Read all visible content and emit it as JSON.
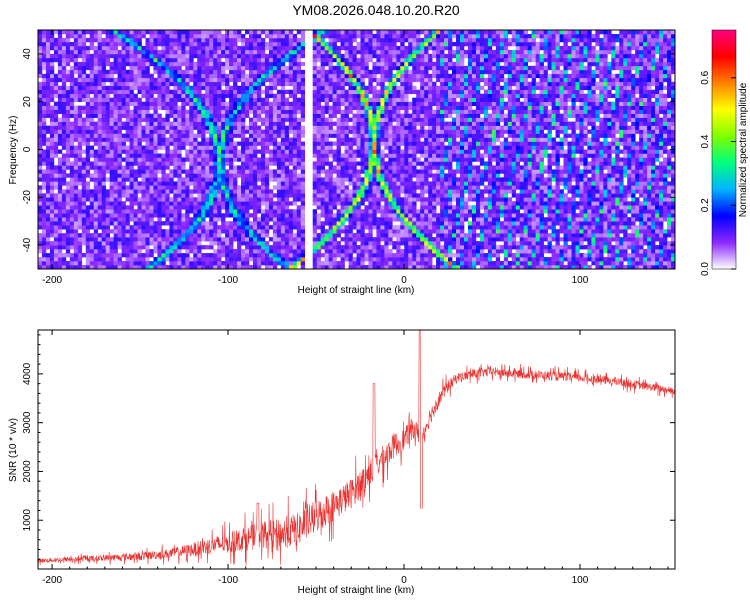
{
  "title": "YM08.2026.048.10.20.R20",
  "chart_data": [
    {
      "type": "heatmap",
      "xlabel": "Height of straight line (km)",
      "ylabel": "Frequency (Hz)",
      "xlim": [
        -208,
        154
      ],
      "ylim": [
        -50,
        50
      ],
      "x_ticks": [
        -200,
        -100,
        0,
        100
      ],
      "y_ticks": [
        -40,
        -20,
        0,
        20,
        40
      ],
      "colorbar": {
        "label": "Normalized spectral amplitude",
        "range": [
          0,
          0.75
        ],
        "ticks": [
          "0.0",
          "0.2",
          "0.4",
          "0.6"
        ],
        "ticks_values": [
          0,
          0.2,
          0.4,
          0.6
        ],
        "colors": [
          "#ffffff",
          "#8c28ff",
          "#0000ff",
          "#00b4ff",
          "#00ff80",
          "#80ff00",
          "#ffff00",
          "#ff8000",
          "#ff0000",
          "#ff0080"
        ]
      },
      "features": [
        {
          "name": "hyperbolic-echo-1",
          "center_x": -17,
          "amplitude": 0.55
        },
        {
          "name": "hyperbolic-echo-2",
          "center_x": -105,
          "amplitude": 0.3
        },
        {
          "name": "blank-column",
          "x": -55
        }
      ]
    },
    {
      "type": "line",
      "xlabel": "Height of straight line (km)",
      "ylabel": "SNR (10 * v/v)",
      "xlim": [
        -208,
        154
      ],
      "ylim": [
        0,
        4900
      ],
      "x_ticks": [
        -200,
        -100,
        0,
        100
      ],
      "y_ticks": [
        1000,
        2000,
        3000,
        4000
      ],
      "series": [
        {
          "name": "SNR",
          "color": "#e8312f",
          "x": [
            -208,
            -180,
            -150,
            -130,
            -120,
            -110,
            -100,
            -90,
            -80,
            -70,
            -60,
            -50,
            -40,
            -30,
            -20,
            -15,
            -10,
            -5,
            0,
            5,
            10,
            15,
            20,
            25,
            30,
            40,
            50,
            60,
            80,
            100,
            120,
            140,
            154
          ],
          "y": [
            170,
            210,
            260,
            330,
            400,
            480,
            530,
            620,
            700,
            720,
            820,
            1080,
            1300,
            1550,
            1950,
            2150,
            2350,
            2550,
            2650,
            2900,
            2700,
            3150,
            3500,
            3750,
            3920,
            4000,
            4050,
            4010,
            3970,
            3920,
            3850,
            3730,
            3650
          ],
          "noise": [
            60,
            80,
            120,
            150,
            200,
            250,
            300,
            350,
            400,
            450,
            500,
            500,
            450,
            450,
            420,
            400,
            380,
            350,
            330,
            300,
            280,
            260,
            220,
            180,
            150,
            140,
            140,
            130,
            130,
            125,
            120,
            120,
            110
          ],
          "spikes": [
            {
              "x": -83,
              "y": 1350
            },
            {
              "x": -17,
              "y": 3800
            },
            {
              "x": 9,
              "y": 4900
            },
            {
              "x": 10,
              "y": 1250
            }
          ]
        }
      ]
    }
  ]
}
